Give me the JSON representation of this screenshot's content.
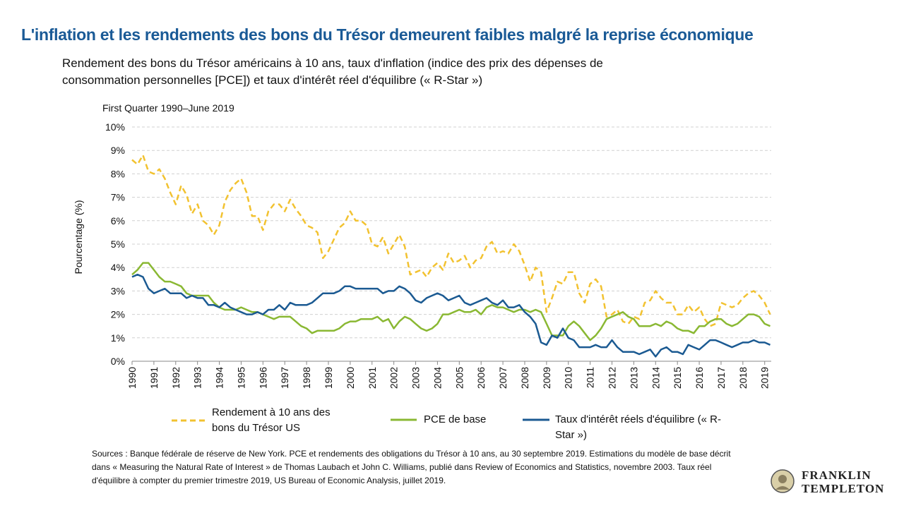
{
  "header": {
    "title": "L'inflation et les rendements des bons du Trésor demeurent faibles malgré la reprise économique",
    "subtitle": "Rendement des bons du Trésor américains à 10 ans, taux d'inflation (indice des prix des dépenses de consommation personnelles [PCE]) et taux d'intérêt réel d'équilibre (« R-Star »)"
  },
  "chart_data": {
    "type": "line",
    "subtitle": "First Quarter 1990–June 2019",
    "y_label": "Pourcentage (%)",
    "grid": true,
    "x": [
      1990,
      1990.25,
      1990.5,
      1990.75,
      1991,
      1991.25,
      1991.5,
      1991.75,
      1992,
      1992.25,
      1992.5,
      1992.75,
      1993,
      1993.25,
      1993.5,
      1993.75,
      1994,
      1994.25,
      1994.5,
      1994.75,
      1995,
      1995.25,
      1995.5,
      1995.75,
      1996,
      1996.25,
      1996.5,
      1996.75,
      1997,
      1997.25,
      1997.5,
      1997.75,
      1998,
      1998.25,
      1998.5,
      1998.75,
      1999,
      1999.25,
      1999.5,
      1999.75,
      2000,
      2000.25,
      2000.5,
      2000.75,
      2001,
      2001.25,
      2001.5,
      2001.75,
      2002,
      2002.25,
      2002.5,
      2002.75,
      2003,
      2003.25,
      2003.5,
      2003.75,
      2004,
      2004.25,
      2004.5,
      2004.75,
      2005,
      2005.25,
      2005.5,
      2005.75,
      2006,
      2006.25,
      2006.5,
      2006.75,
      2007,
      2007.25,
      2007.5,
      2007.75,
      2008,
      2008.25,
      2008.5,
      2008.75,
      2009,
      2009.25,
      2009.5,
      2009.75,
      2010,
      2010.25,
      2010.5,
      2010.75,
      2011,
      2011.25,
      2011.5,
      2011.75,
      2012,
      2012.25,
      2012.5,
      2012.75,
      2013,
      2013.25,
      2013.5,
      2013.75,
      2014,
      2014.25,
      2014.5,
      2014.75,
      2015,
      2015.25,
      2015.5,
      2015.75,
      2016,
      2016.25,
      2016.5,
      2016.75,
      2017,
      2017.25,
      2017.5,
      2017.75,
      2018,
      2018.25,
      2018.5,
      2018.75,
      2019,
      2019.25
    ],
    "xlim": [
      1990,
      2019.3
    ],
    "xticks": [
      1990,
      1991,
      1992,
      1993,
      1994,
      1995,
      1996,
      1997,
      1998,
      1999,
      2000,
      2001,
      2002,
      2003,
      2004,
      2005,
      2006,
      2007,
      2008,
      2009,
      2010,
      2011,
      2012,
      2013,
      2014,
      2015,
      2016,
      2017,
      2018,
      2019
    ],
    "ylim": [
      0,
      10
    ],
    "yticks": [
      {
        "value": 0,
        "label": "0%"
      },
      {
        "value": 1,
        "label": "1%"
      },
      {
        "value": 2,
        "label": "2%"
      },
      {
        "value": 3,
        "label": "3%"
      },
      {
        "value": 4,
        "label": "4%"
      },
      {
        "value": 5,
        "label": "5%"
      },
      {
        "value": 6,
        "label": "6%"
      },
      {
        "value": 7,
        "label": "7%"
      },
      {
        "value": 8,
        "label": "8%"
      },
      {
        "value": 9,
        "label": "9%"
      },
      {
        "value": 10,
        "label": "10%"
      }
    ],
    "series": [
      {
        "name": "Rendement à 10 ans des bons du Trésor US",
        "color": "#f2c230",
        "dashed": true,
        "values": [
          8.6,
          8.4,
          8.8,
          8.1,
          8.0,
          8.2,
          7.8,
          7.2,
          6.7,
          7.5,
          7.1,
          6.3,
          6.7,
          6.0,
          5.8,
          5.4,
          5.8,
          6.8,
          7.3,
          7.6,
          7.8,
          7.2,
          6.2,
          6.2,
          5.6,
          6.4,
          6.7,
          6.7,
          6.4,
          6.9,
          6.5,
          6.2,
          5.8,
          5.7,
          5.5,
          4.4,
          4.7,
          5.2,
          5.7,
          5.9,
          6.4,
          6.0,
          6.0,
          5.8,
          5.0,
          4.9,
          5.3,
          4.6,
          5.0,
          5.4,
          4.9,
          3.7,
          3.8,
          3.9,
          3.6,
          4.0,
          4.2,
          3.9,
          4.6,
          4.2,
          4.3,
          4.5,
          4.0,
          4.3,
          4.4,
          4.9,
          5.1,
          4.6,
          4.7,
          4.6,
          5.0,
          4.7,
          4.1,
          3.4,
          4.0,
          3.8,
          2.1,
          2.7,
          3.4,
          3.3,
          3.8,
          3.8,
          2.9,
          2.5,
          3.3,
          3.5,
          3.2,
          1.9,
          2.0,
          2.2,
          1.7,
          1.6,
          1.9,
          1.8,
          2.5,
          2.6,
          3.0,
          2.7,
          2.5,
          2.5,
          2.0,
          2.0,
          2.4,
          2.1,
          2.3,
          1.8,
          1.5,
          1.6,
          2.5,
          2.4,
          2.3,
          2.4,
          2.7,
          2.9,
          3.0,
          2.8,
          2.5,
          2.0
        ]
      },
      {
        "name": "PCE de base",
        "color": "#8ab833",
        "values": [
          3.7,
          3.9,
          4.2,
          4.2,
          3.9,
          3.6,
          3.4,
          3.4,
          3.3,
          3.2,
          2.9,
          2.8,
          2.8,
          2.8,
          2.8,
          2.5,
          2.3,
          2.2,
          2.2,
          2.2,
          2.3,
          2.2,
          2.1,
          2.1,
          2.0,
          1.9,
          1.8,
          1.9,
          1.9,
          1.9,
          1.7,
          1.5,
          1.4,
          1.2,
          1.3,
          1.3,
          1.3,
          1.3,
          1.4,
          1.6,
          1.7,
          1.7,
          1.8,
          1.8,
          1.8,
          1.9,
          1.7,
          1.8,
          1.4,
          1.7,
          1.9,
          1.8,
          1.6,
          1.4,
          1.3,
          1.4,
          1.6,
          2.0,
          2.0,
          2.1,
          2.2,
          2.1,
          2.1,
          2.2,
          2.0,
          2.3,
          2.4,
          2.3,
          2.3,
          2.2,
          2.1,
          2.2,
          2.2,
          2.1,
          2.2,
          2.1,
          1.6,
          1.1,
          1.1,
          1.1,
          1.5,
          1.7,
          1.5,
          1.2,
          0.9,
          1.1,
          1.4,
          1.8,
          1.9,
          2.0,
          2.1,
          1.9,
          1.8,
          1.5,
          1.5,
          1.5,
          1.6,
          1.5,
          1.7,
          1.6,
          1.4,
          1.3,
          1.3,
          1.2,
          1.5,
          1.5,
          1.7,
          1.8,
          1.8,
          1.6,
          1.5,
          1.6,
          1.8,
          2.0,
          2.0,
          1.9,
          1.6,
          1.5
        ]
      },
      {
        "name": "Taux d'intérêt réels d'équilibre (« R-Star »)",
        "color": "#1b5a92",
        "values": [
          3.6,
          3.7,
          3.6,
          3.1,
          2.9,
          3.0,
          3.1,
          2.9,
          2.9,
          2.9,
          2.7,
          2.8,
          2.7,
          2.7,
          2.4,
          2.4,
          2.3,
          2.5,
          2.3,
          2.2,
          2.1,
          2.0,
          2.0,
          2.1,
          2.0,
          2.2,
          2.2,
          2.4,
          2.2,
          2.5,
          2.4,
          2.4,
          2.4,
          2.5,
          2.7,
          2.9,
          2.9,
          2.9,
          3.0,
          3.2,
          3.2,
          3.1,
          3.1,
          3.1,
          3.1,
          3.1,
          2.9,
          3.0,
          3.0,
          3.2,
          3.1,
          2.9,
          2.6,
          2.5,
          2.7,
          2.8,
          2.9,
          2.8,
          2.6,
          2.7,
          2.8,
          2.5,
          2.4,
          2.5,
          2.6,
          2.7,
          2.5,
          2.4,
          2.6,
          2.3,
          2.3,
          2.4,
          2.1,
          1.9,
          1.6,
          0.8,
          0.7,
          1.1,
          1.0,
          1.4,
          1.0,
          0.9,
          0.6,
          0.6,
          0.6,
          0.7,
          0.6,
          0.6,
          0.9,
          0.6,
          0.4,
          0.4,
          0.4,
          0.3,
          0.4,
          0.5,
          0.2,
          0.5,
          0.6,
          0.4,
          0.4,
          0.3,
          0.7,
          0.6,
          0.5,
          0.7,
          0.9,
          0.9,
          0.8,
          0.7,
          0.6,
          0.7,
          0.8,
          0.8,
          0.9,
          0.8,
          0.8,
          0.7
        ]
      }
    ]
  },
  "footer": {
    "sources": "Sources : Banque fédérale de réserve de New York. PCE et rendements des obligations du Trésor à 10 ans, au 30 septembre 2019. Estimations du modèle de base décrit dans « Measuring the Natural Rate of Interest » de Thomas Laubach et John C. Williams, publié dans Review of Economics and Statistics, novembre 2003. Taux réel d'équilibre à compter du premier trimestre 2019, US Bureau of Economic Analysis, juillet 2019.",
    "logo": [
      "FRANKLIN",
      "TEMPLETON"
    ]
  }
}
